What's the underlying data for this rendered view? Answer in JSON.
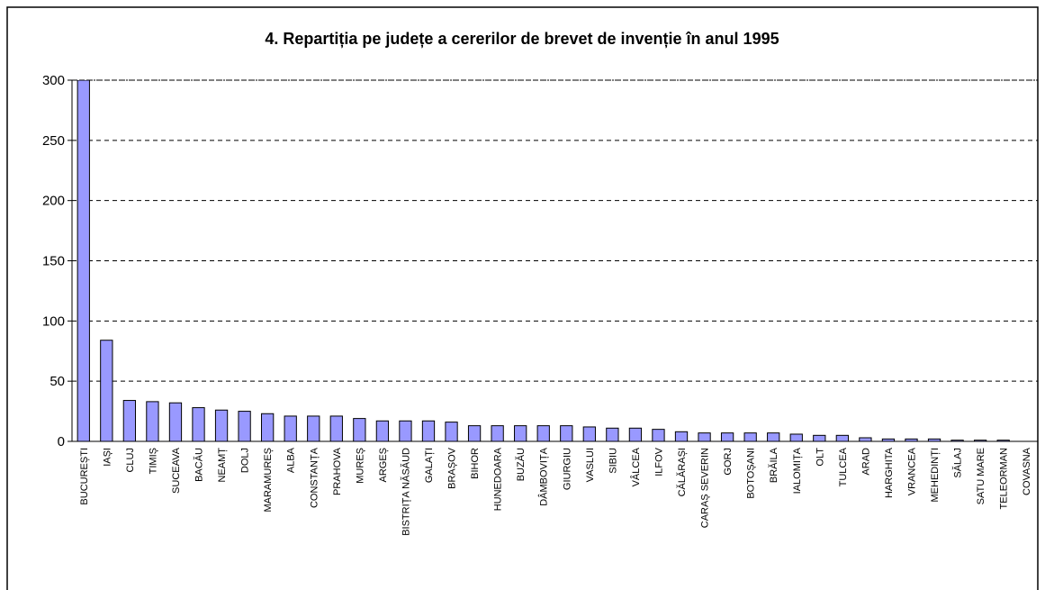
{
  "chart_data": {
    "type": "bar",
    "title": "4. Repartiția pe județe a cererilor de brevet de invenție în anul 1995",
    "categories": [
      "BUCUREȘTI",
      "IAȘI",
      "CLUJ",
      "TIMIȘ",
      "SUCEAVA",
      "BACĂU",
      "NEAMȚ",
      "DOLJ",
      "MARAMUREȘ",
      "ALBA",
      "CONSTANȚA",
      "PRAHOVA",
      "MUREȘ",
      "ARGEȘ",
      "BISTRIȚA NĂSĂUD",
      "GALAȚI",
      "BRAȘOV",
      "BIHOR",
      "HUNEDOARA",
      "BUZĂU",
      "DÂMBOVIȚA",
      "GIURGIU",
      "VASLUI",
      "SIBIU",
      "VÂLCEA",
      "ILFOV",
      "CĂLĂRAȘI",
      "CARAȘ SEVERIN",
      "GORJ",
      "BOTOȘANI",
      "BRĂILA",
      "IALOMIȚA",
      "OLT",
      "TULCEA",
      "ARAD",
      "HARGHITA",
      "VRANCEA",
      "MEHEDINȚI",
      "SĂLAJ",
      "SATU MARE",
      "TELEORMAN",
      "COVASNA"
    ],
    "values": [
      300,
      84,
      34,
      33,
      32,
      28,
      26,
      25,
      23,
      21,
      21,
      21,
      19,
      17,
      17,
      17,
      16,
      13,
      13,
      13,
      13,
      13,
      12,
      11,
      11,
      10,
      8,
      7,
      7,
      7,
      7,
      6,
      5,
      5,
      3,
      2,
      2,
      2,
      1,
      1,
      1,
      0
    ],
    "color": "#9999ff",
    "ylim": [
      0,
      300
    ],
    "yticks": [
      0,
      50,
      100,
      150,
      200,
      250,
      300
    ],
    "grid": true
  }
}
